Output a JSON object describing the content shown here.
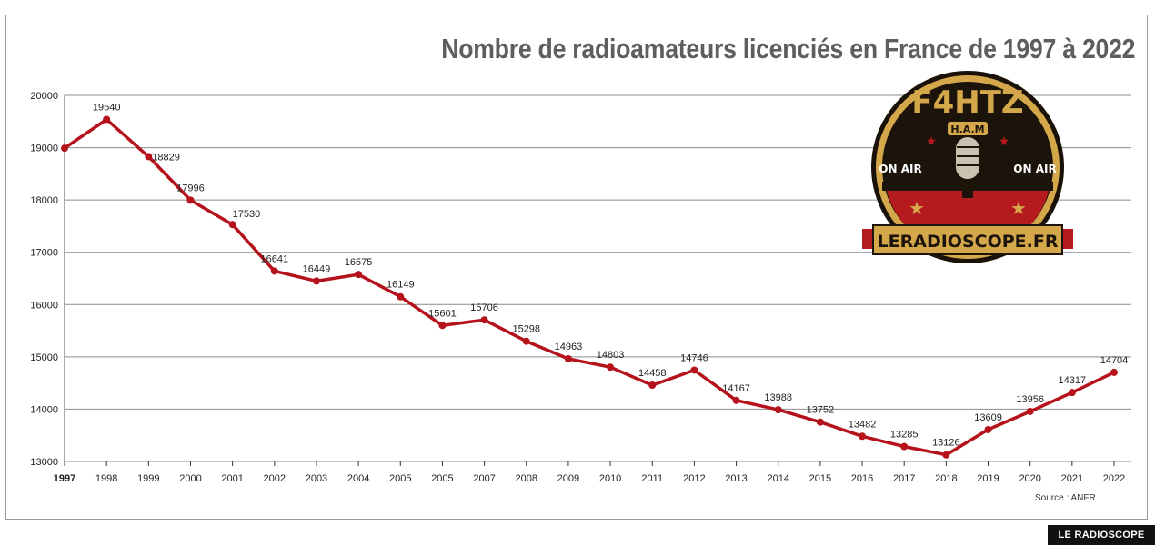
{
  "chart_data": {
    "type": "line",
    "title": "Nombre de radioamateurs licenciés en France de 1997 à 2022",
    "categories": [
      "1997",
      "1998",
      "1999",
      "2000",
      "2001",
      "2002",
      "2003",
      "2004",
      "2005",
      "2005",
      "2007",
      "2008",
      "2009",
      "2010",
      "2011",
      "2012",
      "2013",
      "2014",
      "2015",
      "2016",
      "2017",
      "2018",
      "2019",
      "2020",
      "2021",
      "2022"
    ],
    "values": [
      18990,
      19540,
      18829,
      17996,
      17530,
      16641,
      16449,
      16575,
      16149,
      15601,
      15706,
      15298,
      14963,
      14803,
      14458,
      14746,
      14167,
      13988,
      13752,
      13482,
      13285,
      13126,
      13609,
      13956,
      14317,
      14704
    ],
    "data_labels": [
      "",
      "19540",
      "18829",
      "17996",
      "17530",
      "16641",
      "16449",
      "16575",
      "16149",
      "15601",
      "15706",
      "15298",
      "14963",
      "14803",
      "14458",
      "14746",
      "14167",
      "13988",
      "13752",
      "13482",
      "13285",
      "13126",
      "13609",
      "13956",
      "14317",
      "14704"
    ],
    "yticks": [
      13000,
      14000,
      15000,
      16000,
      17000,
      18000,
      19000,
      20000
    ],
    "ylim": [
      13000,
      20000
    ],
    "grid": true,
    "line_color": "#b5121b",
    "source": "Source : ANFR"
  },
  "logo": {
    "callsign": "F4HTZ",
    "ham": "H.A.M",
    "on_air_left": "ON AIR",
    "on_air_right": "ON AIR",
    "site": "LERADIOSCOPE.FR"
  },
  "footer": "LE RADIOSCOPE"
}
